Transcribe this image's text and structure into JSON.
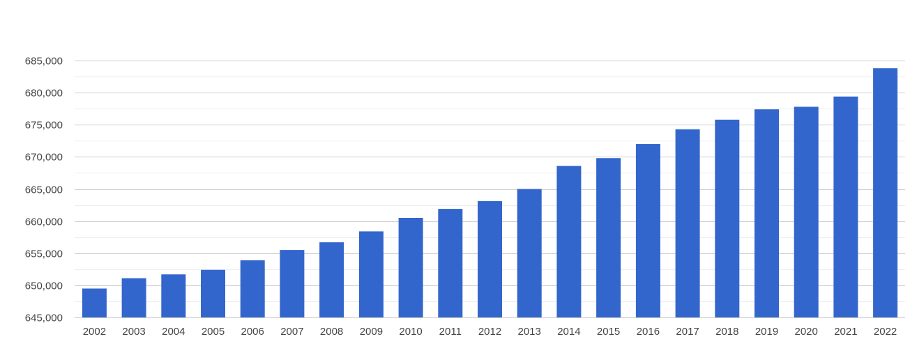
{
  "chart_data": {
    "type": "bar",
    "title": "",
    "xlabel": "",
    "ylabel": "",
    "categories": [
      "2002",
      "2003",
      "2004",
      "2005",
      "2006",
      "2007",
      "2008",
      "2009",
      "2010",
      "2011",
      "2012",
      "2013",
      "2014",
      "2015",
      "2016",
      "2017",
      "2018",
      "2019",
      "2020",
      "2021",
      "2022"
    ],
    "values": [
      649500,
      651100,
      651700,
      652400,
      653900,
      655500,
      656700,
      658400,
      660500,
      661900,
      663100,
      665000,
      668600,
      669800,
      672000,
      674300,
      675800,
      677400,
      677800,
      679400,
      683800
    ],
    "ylim": [
      645000,
      685000
    ],
    "yticks": [
      645000,
      650000,
      655000,
      660000,
      665000,
      670000,
      675000,
      680000,
      685000
    ],
    "ytick_labels": [
      "645,000",
      "650,000",
      "655,000",
      "660,000",
      "665,000",
      "670,000",
      "675,000",
      "680,000",
      "685,000"
    ],
    "grid": true,
    "minor_grid": true,
    "legend": "none",
    "bar_color": "#3366cc",
    "grid_color": "#cccccc",
    "minor_grid_color": "#ebebeb",
    "label_color": "#444444"
  }
}
